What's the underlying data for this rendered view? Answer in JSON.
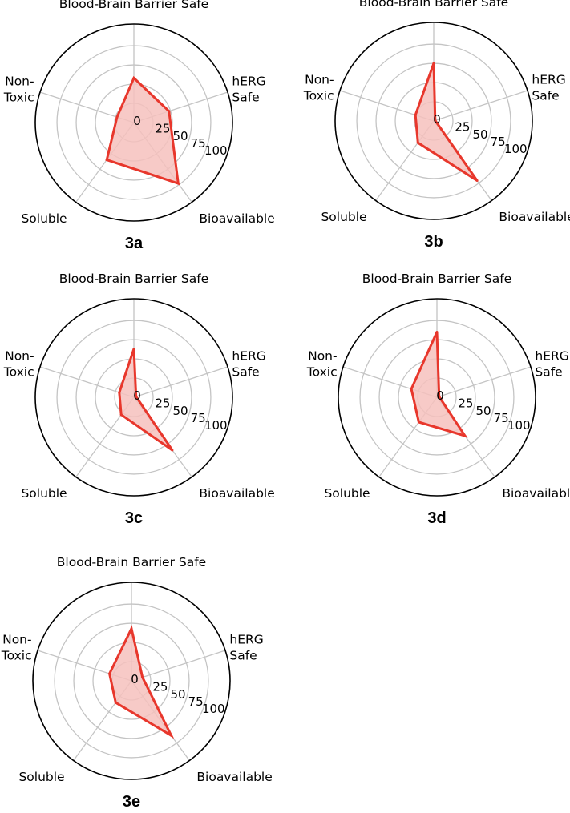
{
  "colors": {
    "polygon_stroke": "#e8372c",
    "polygon_fill": "#f6c1bd",
    "grid": "#c4c4c4",
    "outer_ring": "#000000"
  },
  "chart_data": [
    {
      "type": "radar",
      "panel_label": "3a",
      "axes": [
        "Blood-Brain Barrier Safe",
        "hERG Safe",
        "Bioavailable",
        "Soluble",
        "Non-Toxic"
      ],
      "axis_label_lines": [
        [
          "Blood-Brain Barrier Safe"
        ],
        [
          "hERG",
          "Safe"
        ],
        [
          "Bioavailable"
        ],
        [
          "Soluble"
        ],
        [
          "Non-",
          "Toxic"
        ]
      ],
      "radial_ticks": [
        "0",
        "25",
        "50",
        "75",
        "100"
      ],
      "rlim": [
        0,
        100
      ],
      "values": [
        58,
        48,
        98,
        60,
        23
      ]
    },
    {
      "type": "radar",
      "panel_label": "3b",
      "axes": [
        "Blood-Brain Barrier Safe",
        "hERG Safe",
        "Bioavailable",
        "Soluble",
        "Non-Toxic"
      ],
      "axis_label_lines": [
        [
          "Blood-Brain Barrier Safe"
        ],
        [
          "hERG",
          "Safe"
        ],
        [
          "Bioavailable"
        ],
        [
          "Soluble"
        ],
        [
          "Non-",
          "Toxic"
        ]
      ],
      "radial_ticks": [
        "0",
        "25",
        "50",
        "75",
        "100"
      ],
      "rlim": [
        0,
        100
      ],
      "values": [
        75,
        2,
        96,
        35,
        25
      ]
    },
    {
      "type": "radar",
      "panel_label": "3c",
      "axes": [
        "Blood-Brain Barrier Safe",
        "hERG Safe",
        "Bioavailable",
        "Soluble",
        "Non-Toxic"
      ],
      "axis_label_lines": [
        [
          "Blood-Brain Barrier Safe"
        ],
        [
          "hERG",
          "Safe"
        ],
        [
          "Bioavailable"
        ],
        [
          "Soluble"
        ],
        [
          "Non-",
          "Toxic"
        ]
      ],
      "radial_ticks": [
        "0",
        "25",
        "50",
        "75",
        "100"
      ],
      "rlim": [
        0,
        100
      ],
      "values": [
        63,
        3,
        85,
        28,
        20
      ]
    },
    {
      "type": "radar",
      "panel_label": "3d",
      "axes": [
        "Blood-Brain Barrier Safe",
        "hERG Safe",
        "Bioavailable",
        "Soluble",
        "Non-Toxic"
      ],
      "axis_label_lines": [
        [
          "Blood-Brain Barrier Safe"
        ],
        [
          "hERG",
          "Safe"
        ],
        [
          "Bioavailable"
        ],
        [
          "Soluble"
        ],
        [
          "Non-",
          "Toxic"
        ]
      ],
      "radial_ticks": [
        "0",
        "25",
        "50",
        "75",
        "100"
      ],
      "rlim": [
        0,
        100
      ],
      "values": [
        85,
        3,
        62,
        40,
        35
      ]
    },
    {
      "type": "radar",
      "panel_label": "3e",
      "axes": [
        "Blood-Brain Barrier Safe",
        "hERG Safe",
        "Bioavailable",
        "Soluble",
        "Non-Toxic"
      ],
      "axis_label_lines": [
        [
          "Blood-Brain Barrier Safe"
        ],
        [
          "hERG",
          "Safe"
        ],
        [
          "Bioavailable"
        ],
        [
          "Soluble"
        ],
        [
          "Non-",
          "Toxic"
        ]
      ],
      "radial_ticks": [
        "0",
        "25",
        "50",
        "75",
        "100"
      ],
      "rlim": [
        0,
        100
      ],
      "values": [
        68,
        15,
        88,
        35,
        30
      ]
    }
  ]
}
